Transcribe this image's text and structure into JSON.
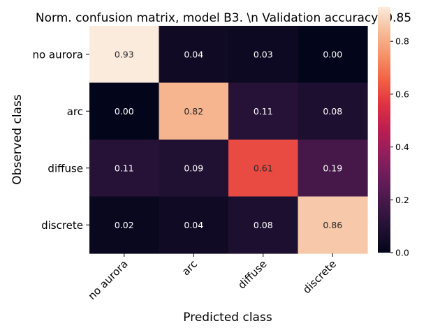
{
  "chart_data": {
    "type": "heatmap",
    "title": "Norm. confusion matrix, model B3. \\n Validation accuracy: 0.85",
    "xlabel": "Predicted class",
    "ylabel": "Observed class",
    "x_categories": [
      "no aurora",
      "arc",
      "diffuse",
      "discrete"
    ],
    "y_categories": [
      "no aurora",
      "arc",
      "diffuse",
      "discrete"
    ],
    "values": [
      [
        0.93,
        0.04,
        0.03,
        0.0
      ],
      [
        0.0,
        0.82,
        0.11,
        0.08
      ],
      [
        0.11,
        0.09,
        0.61,
        0.19
      ],
      [
        0.02,
        0.04,
        0.08,
        0.86
      ]
    ],
    "cell_labels": [
      [
        "0.93",
        "0.04",
        "0.03",
        "0.00"
      ],
      [
        "0.00",
        "0.82",
        "0.11",
        "0.08"
      ],
      [
        "0.11",
        "0.09",
        "0.61",
        "0.19"
      ],
      [
        "0.02",
        "0.04",
        "0.08",
        "0.86"
      ]
    ],
    "colormap": "rocket",
    "vmin": 0.0,
    "vmax": 0.93,
    "colorbar_ticks": [
      "0.0",
      "0.2",
      "0.4",
      "0.6",
      "0.8"
    ],
    "colorbar_tick_values": [
      0.0,
      0.2,
      0.4,
      0.6,
      0.8
    ],
    "grid": false
  }
}
